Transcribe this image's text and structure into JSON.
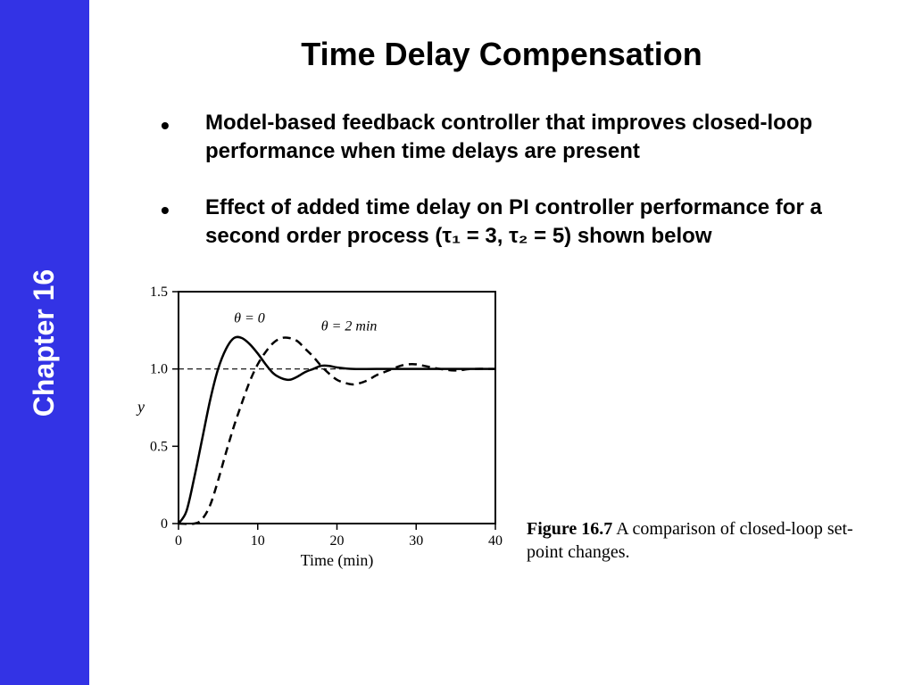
{
  "sidebar": {
    "label": "Chapter 16",
    "bg_color": "#3333e5",
    "text_color": "#ffffff"
  },
  "title": "Time Delay Compensation",
  "bullets": [
    "Model-based feedback controller that improves closed-loop performance when time delays are present",
    "Effect of added time delay on PI controller performance for a second order process (τ₁ = 3, τ₂ = 5) shown below"
  ],
  "chart": {
    "type": "line",
    "xlabel": "Time (min)",
    "ylabel": "y",
    "xlim": [
      0,
      40
    ],
    "ylim": [
      0,
      1.5
    ],
    "xticks": [
      0,
      10,
      20,
      30,
      40
    ],
    "yticks": [
      0,
      0.5,
      1.0,
      1.5
    ],
    "axis_color": "#000000",
    "background_color": "#ffffff",
    "setpoint_line": {
      "y": 1.0,
      "style": "dashed",
      "color": "#000000"
    },
    "series": [
      {
        "name": "theta0",
        "label": "θ = 0",
        "label_x": 7,
        "label_y": 1.3,
        "line_style": "solid",
        "line_width": 2.5,
        "color": "#000000",
        "points": [
          [
            0,
            0
          ],
          [
            1,
            0.08
          ],
          [
            2,
            0.3
          ],
          [
            3,
            0.55
          ],
          [
            4,
            0.8
          ],
          [
            5,
            1.0
          ],
          [
            6,
            1.13
          ],
          [
            7,
            1.2
          ],
          [
            8,
            1.2
          ],
          [
            9,
            1.16
          ],
          [
            10,
            1.1
          ],
          [
            11,
            1.03
          ],
          [
            12,
            0.97
          ],
          [
            13,
            0.94
          ],
          [
            14,
            0.93
          ],
          [
            15,
            0.95
          ],
          [
            16,
            0.98
          ],
          [
            17,
            1.0
          ],
          [
            18,
            1.02
          ],
          [
            19,
            1.02
          ],
          [
            20,
            1.01
          ],
          [
            22,
            1.0
          ],
          [
            25,
            1.0
          ],
          [
            30,
            1.0
          ],
          [
            35,
            1.0
          ],
          [
            40,
            1.0
          ]
        ]
      },
      {
        "name": "theta2",
        "label": "θ = 2 min",
        "label_x": 18,
        "label_y": 1.25,
        "line_style": "dashed",
        "line_width": 2.5,
        "color": "#000000",
        "points": [
          [
            0,
            0
          ],
          [
            2,
            0.0
          ],
          [
            3,
            0.03
          ],
          [
            4,
            0.12
          ],
          [
            5,
            0.28
          ],
          [
            6,
            0.46
          ],
          [
            7,
            0.63
          ],
          [
            8,
            0.78
          ],
          [
            9,
            0.92
          ],
          [
            10,
            1.03
          ],
          [
            11,
            1.11
          ],
          [
            12,
            1.17
          ],
          [
            13,
            1.2
          ],
          [
            14,
            1.2
          ],
          [
            15,
            1.18
          ],
          [
            16,
            1.13
          ],
          [
            17,
            1.08
          ],
          [
            18,
            1.02
          ],
          [
            19,
            0.97
          ],
          [
            20,
            0.93
          ],
          [
            21,
            0.91
          ],
          [
            22,
            0.9
          ],
          [
            23,
            0.91
          ],
          [
            24,
            0.93
          ],
          [
            25,
            0.96
          ],
          [
            26,
            0.98
          ],
          [
            27,
            1.0
          ],
          [
            28,
            1.02
          ],
          [
            29,
            1.03
          ],
          [
            30,
            1.03
          ],
          [
            31,
            1.02
          ],
          [
            32,
            1.01
          ],
          [
            33,
            1.0
          ],
          [
            35,
            0.99
          ],
          [
            37,
            1.0
          ],
          [
            40,
            1.0
          ]
        ]
      }
    ],
    "font_family": "Times New Roman",
    "tick_fontsize": 16,
    "label_fontsize": 18
  },
  "caption": {
    "prefix": "Figure 16.7",
    "text": " A comparison of closed-loop set-point changes."
  }
}
